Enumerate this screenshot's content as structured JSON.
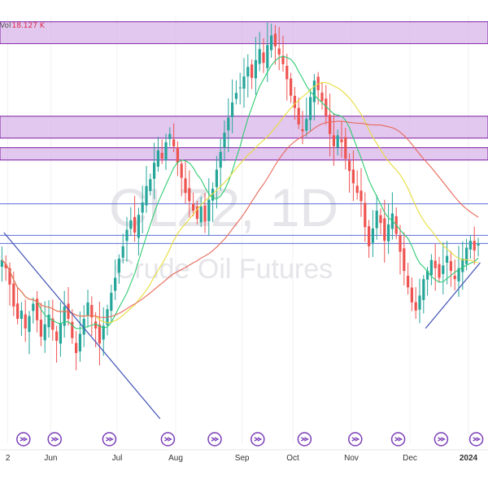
{
  "colors": {
    "up": "#26a69a",
    "down": "#ef5350",
    "zone_fill": "#d8b4e8",
    "zone_stroke": "#7b1fa2",
    "sma_fast": "#2ecc71",
    "sma_mid": "#e8dc3a",
    "sma_slow": "#e8695a",
    "hline": "#5b6fd6",
    "trendline": "#3f51b5",
    "event_badge": "#7b3fb8",
    "watermark": "#e5e5ea",
    "grid": "#f0f0f3"
  },
  "header": {
    "vol_label": "Vol",
    "vol_value": "18.127 K"
  },
  "watermark": {
    "symbol": "CLZ2, 1D",
    "name": "Crude Oil Futures"
  },
  "event_badge_icon": "arrow-circle-icon",
  "chart_data": {
    "type": "candlestick",
    "x_axis": {
      "ticks": [
        {
          "label": "2",
          "bar": 2
        },
        {
          "label": "Jun",
          "bar": 13
        },
        {
          "label": "Jul",
          "bar": 30
        },
        {
          "label": "Aug",
          "bar": 45
        },
        {
          "label": "Sep",
          "bar": 62
        },
        {
          "label": "Oct",
          "bar": 75
        },
        {
          "label": "Nov",
          "bar": 90
        },
        {
          "label": "Dec",
          "bar": 105
        },
        {
          "label": "2024",
          "bar": 120
        }
      ],
      "bold_ticks": [
        "2024"
      ]
    },
    "y_range": [
      66.0,
      96.0
    ],
    "closes": [
      78.2,
      77.6,
      76.4,
      74.8,
      73.9,
      74.5,
      73.2,
      74.1,
      75.0,
      73.8,
      72.6,
      73.5,
      74.2,
      73.1,
      72.3,
      73.6,
      74.8,
      73.9,
      72.5,
      71.4,
      72.8,
      73.9,
      75.1,
      74.0,
      73.2,
      72.1,
      73.4,
      74.6,
      75.8,
      76.9,
      78.3,
      79.2,
      80.4,
      81.1,
      80.2,
      81.5,
      82.4,
      83.6,
      84.1,
      85.3,
      86.2,
      85.6,
      86.8,
      87.4,
      86.5,
      85.3,
      84.2,
      83.1,
      82.5,
      81.8,
      81.2,
      82.1,
      81.0,
      82.6,
      83.4,
      84.8,
      86.1,
      87.5,
      88.6,
      89.7,
      90.4,
      90.8,
      91.6,
      92.3,
      91.5,
      92.8,
      93.6,
      92.6,
      93.9,
      94.6,
      93.8,
      93.2,
      92.5,
      91.4,
      90.2,
      89.3,
      88.1,
      87.6,
      88.5,
      90.1,
      91.3,
      90.6,
      89.8,
      88.7,
      87.4,
      86.5,
      87.3,
      86.8,
      85.6,
      84.7,
      83.8,
      83.1,
      82.5,
      80.6,
      79.2,
      80.5,
      81.8,
      80.9,
      79.6,
      80.8,
      81.6,
      80.1,
      78.8,
      77.4,
      76.2,
      75.1,
      74.5,
      75.6,
      76.8,
      77.4,
      78.2,
      77.6,
      76.9,
      77.8,
      78.5,
      77.4,
      76.8,
      77.6,
      78.3,
      79.1,
      79.6,
      78.9,
      79.4
    ],
    "zones": [
      {
        "from": 94.0,
        "to": 95.6
      },
      {
        "from": 87.1,
        "to": 88.7
      },
      {
        "from": 85.5,
        "to": 86.4
      }
    ],
    "horizontal_lines": [
      82.3,
      80.0,
      79.4
    ],
    "trendlines": [
      {
        "from_bar": 1,
        "from_value": 80.2,
        "to_bar": 41,
        "to_value": 66.6
      },
      {
        "from_bar": 109,
        "from_value": 73.2,
        "to_bar": 123,
        "to_value": 78.0
      }
    ],
    "event_bars": [
      6,
      14,
      28,
      43,
      55,
      66,
      78,
      91,
      102,
      113,
      122
    ]
  }
}
